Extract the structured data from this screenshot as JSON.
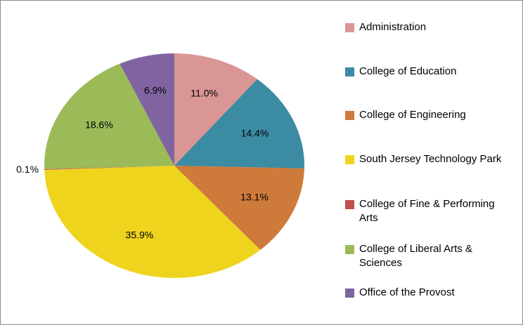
{
  "chart_data": {
    "type": "pie",
    "categories": [
      "Administration",
      "College of Education",
      "College of Engineering",
      "South Jersey Technology Park",
      "College of Fine & Performing Arts",
      "College of Liberal Arts & Sciences",
      "Office of the Provost"
    ],
    "values": [
      11.0,
      14.4,
      13.1,
      35.9,
      0.1,
      18.6,
      6.9
    ],
    "value_labels": [
      "11.0%",
      "14.4%",
      "13.1%",
      "35.9%",
      "0.1%",
      "18.6%",
      "6.9%"
    ],
    "colors": [
      "#d99694",
      "#3b8ba3",
      "#cd7a3a",
      "#efd41e",
      "#c0504d",
      "#9bbb59",
      "#8064a2"
    ],
    "legend": "right"
  }
}
